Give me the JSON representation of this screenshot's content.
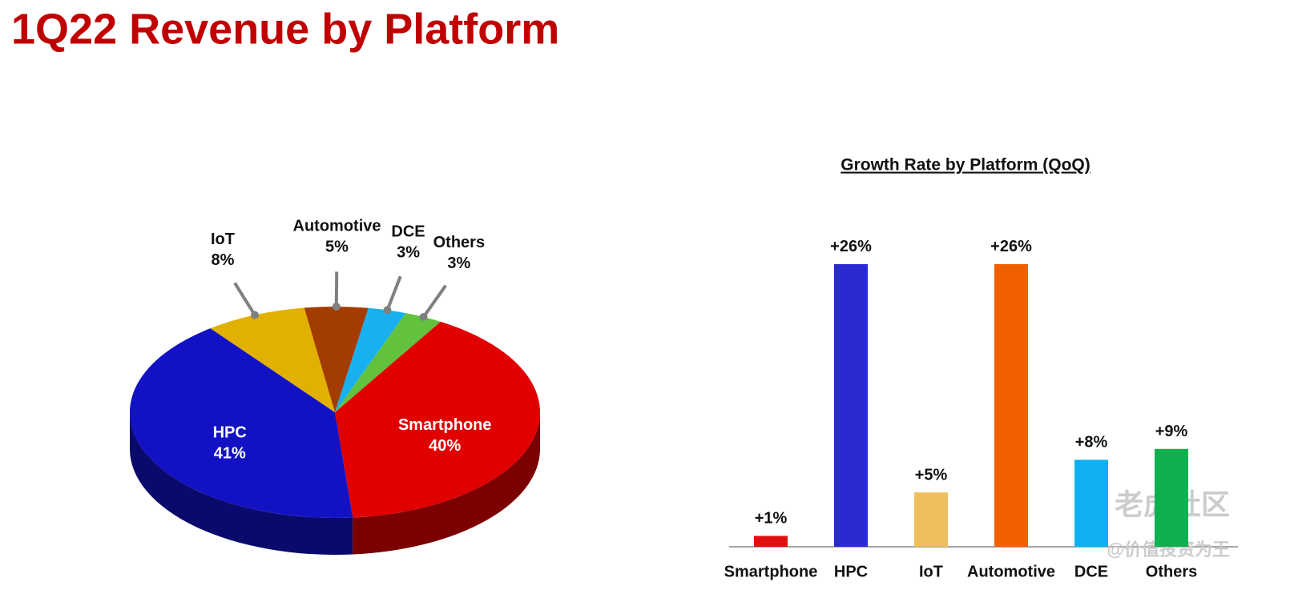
{
  "title": "1Q22 Revenue by Platform",
  "watermark": [
    "老虎社区",
    "@价值投资为王"
  ],
  "chart_data": [
    {
      "type": "pie",
      "categories": [
        "Smartphone",
        "HPC",
        "IoT",
        "Automotive",
        "DCE",
        "Others"
      ],
      "values": [
        40,
        41,
        8,
        5,
        3,
        3
      ],
      "value_labels": [
        "40%",
        "41%",
        "8%",
        "5%",
        "3%",
        "3%"
      ],
      "colors": [
        "#e00000",
        "#1212c4",
        "#e2b000",
        "#a23c00",
        "#18b0f0",
        "#62c23e"
      ]
    },
    {
      "type": "bar",
      "title": "Growth Rate by Platform (QoQ)",
      "categories": [
        "Smartphone",
        "HPC",
        "IoT",
        "Automotive",
        "DCE",
        "Others"
      ],
      "values": [
        1,
        26,
        5,
        26,
        8,
        9
      ],
      "value_labels": [
        "+1%",
        "+26%",
        "+5%",
        "+26%",
        "+8%",
        "+9%"
      ],
      "colors": [
        "#e01010",
        "#2a2ad0",
        "#eebf5c",
        "#f06000",
        "#10b0f0",
        "#10b050"
      ]
    }
  ]
}
